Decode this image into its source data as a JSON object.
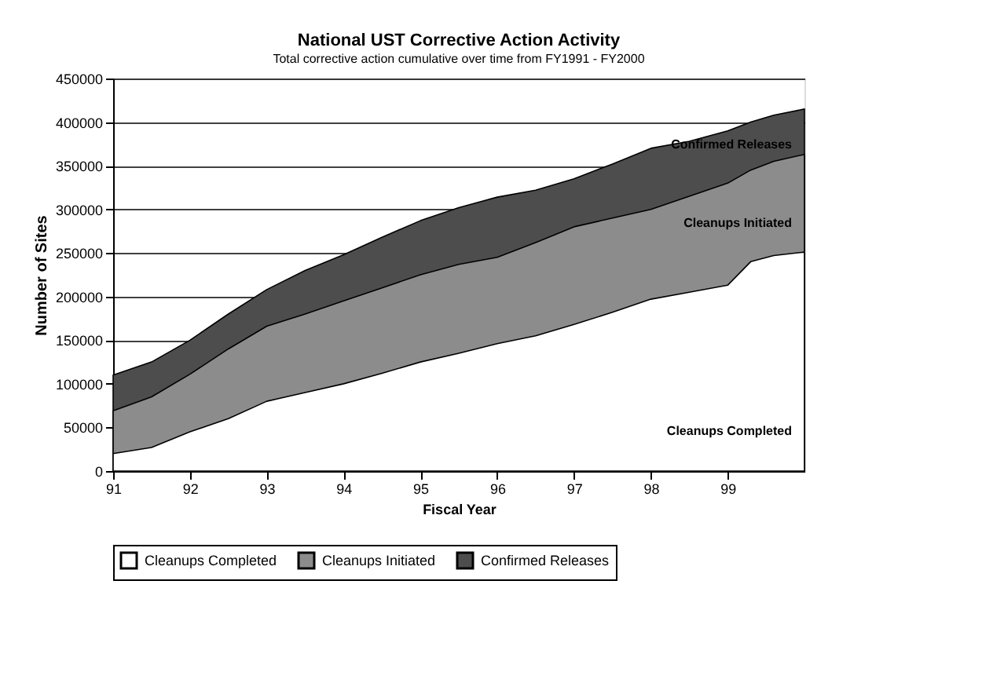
{
  "chart_data": {
    "type": "area",
    "title": "National UST Corrective Action Activity",
    "subtitle": "Total corrective action cumulative over time from FY1991 - FY2000",
    "xlabel": "Fiscal Year",
    "ylabel": "Number of Sites",
    "x": [
      91,
      91.5,
      92,
      92.5,
      93,
      93.5,
      94,
      94.5,
      95,
      95.5,
      96,
      96.5,
      97,
      97.5,
      98,
      98.5,
      99,
      99.3,
      99.6,
      100
    ],
    "series": [
      {
        "name": "Cleanups Completed",
        "color": "#ffffff",
        "values": [
          20000,
          27000,
          45000,
          60000,
          80000,
          90000,
          100000,
          112000,
          125000,
          135000,
          146000,
          155000,
          168000,
          182000,
          197000,
          205000,
          213000,
          240000,
          247000,
          251000
        ]
      },
      {
        "name": "Cleanups Initiated",
        "color": "#8c8c8c",
        "values": [
          69000,
          85000,
          111000,
          140000,
          166000,
          180000,
          195000,
          210000,
          225000,
          237000,
          245000,
          262000,
          280000,
          290000,
          300000,
          315000,
          330000,
          345000,
          355000,
          363000
        ]
      },
      {
        "name": "Confirmed Releases",
        "color": "#4d4d4d",
        "values": [
          110000,
          125000,
          150000,
          180000,
          208000,
          230000,
          248000,
          268000,
          287000,
          302000,
          314000,
          322000,
          335000,
          352000,
          370000,
          378000,
          390000,
          400000,
          408000,
          415000
        ]
      }
    ],
    "xlim": [
      91,
      100
    ],
    "xticks": [
      91,
      92,
      93,
      94,
      95,
      96,
      97,
      98,
      99
    ],
    "ylim": [
      0,
      450000
    ],
    "yticks": [
      0,
      50000,
      100000,
      150000,
      200000,
      250000,
      300000,
      350000,
      400000,
      450000
    ],
    "grid": "y",
    "legend": "bottom",
    "annotations": [
      "Confirmed Releases",
      "Cleanups Initiated",
      "Cleanups Completed"
    ]
  }
}
